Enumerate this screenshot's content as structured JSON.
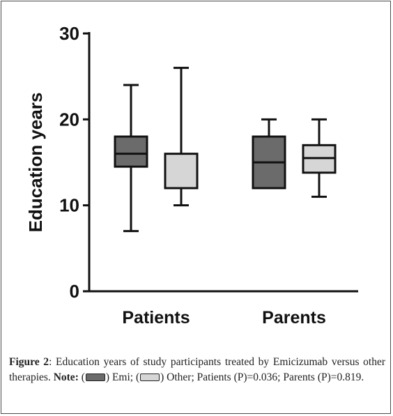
{
  "chart_data": {
    "type": "box",
    "ylabel": "Education years",
    "ylim": [
      0,
      30
    ],
    "yticks": [
      0,
      10,
      20,
      30
    ],
    "categories": [
      "Patients",
      "Parents"
    ],
    "series": [
      {
        "name": "Emi",
        "color": "#6b6b6b",
        "boxes": [
          {
            "category": "Patients",
            "min": 7,
            "q1": 14.5,
            "median": 16,
            "q3": 18,
            "max": 24
          },
          {
            "category": "Parents",
            "min": 12,
            "q1": 12,
            "median": 15,
            "q3": 18,
            "max": 20
          }
        ]
      },
      {
        "name": "Other",
        "color": "#d6d6d6",
        "boxes": [
          {
            "category": "Patients",
            "min": 10,
            "q1": 12,
            "median": 12,
            "q3": 16,
            "max": 26
          },
          {
            "category": "Parents",
            "min": 11,
            "q1": 13.8,
            "median": 15.5,
            "q3": 17,
            "max": 20
          }
        ]
      }
    ],
    "grid": false
  },
  "caption": {
    "figure_label": "Figure 2",
    "text": ": Education years of study participants treated by Emicizumab versus other therapies. ",
    "note_label": "Note:",
    "open_paren_1": " (",
    "emi_label": ") Emi; (",
    "other_label": ") Other; Patients (P)=0.036; Parents (P)=0.819."
  }
}
